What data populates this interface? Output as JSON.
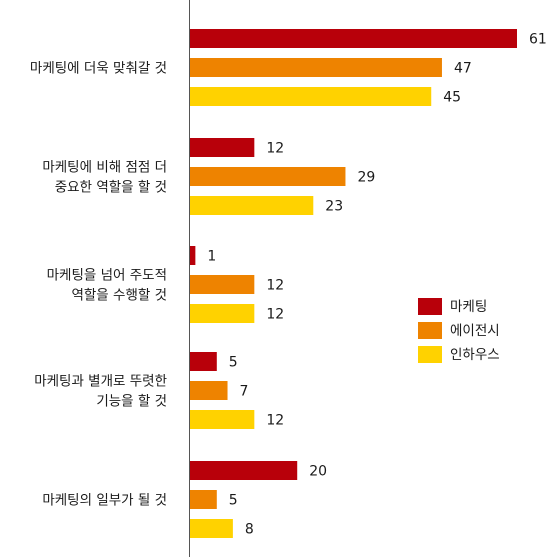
{
  "chart_data": {
    "type": "bar",
    "orientation": "horizontal",
    "categories": [
      [
        "마케팅에 더욱 맞춰갈 것"
      ],
      [
        "마케팅에 비해 점점 더",
        "중요한 역할을 할 것"
      ],
      [
        "마케팅을 넘어 주도적",
        "역할을 수행할 것"
      ],
      [
        "마케팅과 별개로 뚜렷한",
        "기능을 할 것"
      ],
      [
        "마케팅의 일부가 될 것"
      ]
    ],
    "series": [
      {
        "name": "마케팅",
        "color": "#B8000A",
        "values": [
          61,
          12,
          1,
          5,
          20
        ]
      },
      {
        "name": "에이전시",
        "color": "#EE8300",
        "values": [
          47,
          29,
          12,
          7,
          5
        ]
      },
      {
        "name": "인하우스",
        "color": "#FFD200",
        "values": [
          45,
          23,
          12,
          12,
          8
        ]
      }
    ],
    "xlim": [
      0,
      61
    ],
    "grid": false,
    "legend": "right"
  }
}
